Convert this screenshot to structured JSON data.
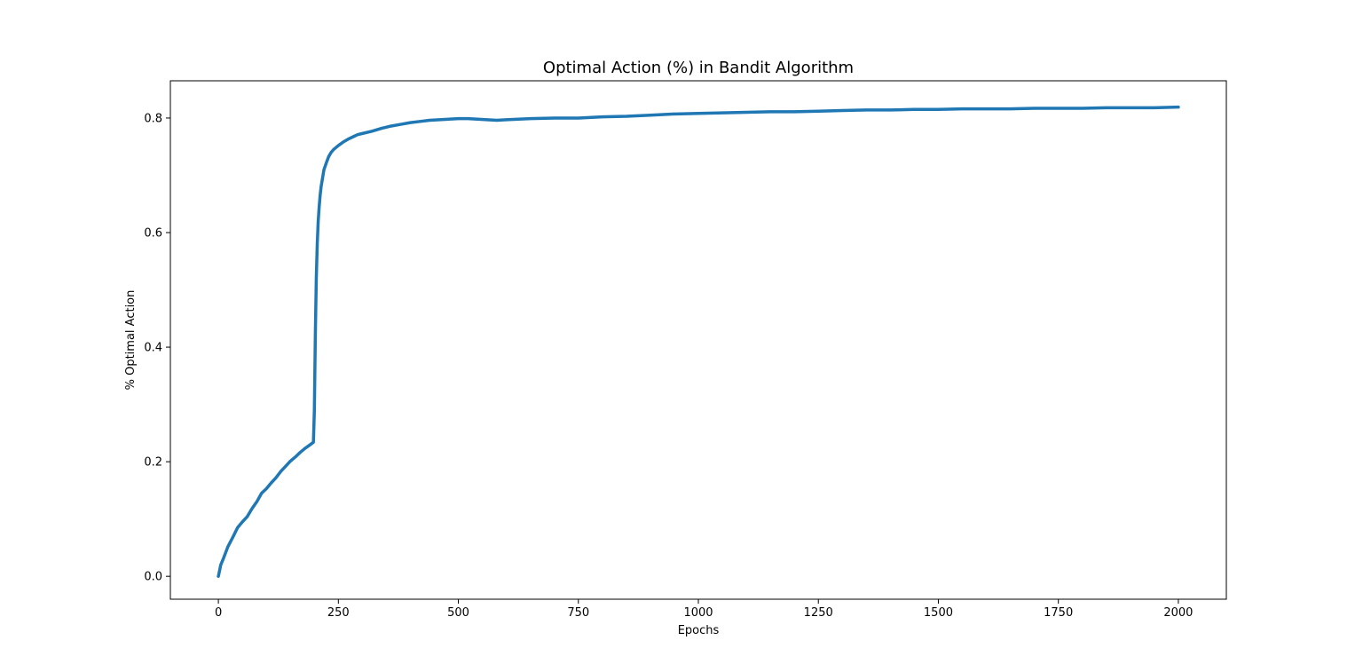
{
  "chart_data": {
    "type": "line",
    "title": "Optimal Action (%) in Bandit Algorithm",
    "xlabel": "Epochs",
    "ylabel": "% Optimal Action",
    "xlim": [
      -100,
      2100
    ],
    "ylim": [
      -0.04,
      0.865
    ],
    "xticks": [
      0,
      250,
      500,
      750,
      1000,
      1250,
      1500,
      1750,
      2000
    ],
    "yticks": [
      0.0,
      0.2,
      0.4,
      0.6,
      0.8
    ],
    "xtick_labels": [
      "0",
      "250",
      "500",
      "750",
      "1000",
      "1250",
      "1500",
      "1750",
      "2000"
    ],
    "ytick_labels": [
      "0.0",
      "0.2",
      "0.4",
      "0.6",
      "0.8"
    ],
    "grid": false,
    "color": "#1f77b4",
    "series": [
      {
        "x": [
          0,
          5,
          10,
          20,
          30,
          40,
          50,
          60,
          70,
          80,
          90,
          100,
          110,
          120,
          130,
          140,
          150,
          160,
          170,
          180,
          190,
          198,
          200,
          202,
          204,
          206,
          208,
          210,
          212,
          214,
          216,
          218,
          220,
          225,
          230,
          235,
          240,
          250,
          260,
          270,
          280,
          290,
          300,
          320,
          340,
          360,
          380,
          400,
          420,
          440,
          460,
          480,
          500,
          520,
          540,
          560,
          580,
          600,
          650,
          700,
          750,
          800,
          850,
          900,
          950,
          1000,
          1050,
          1100,
          1150,
          1200,
          1250,
          1300,
          1350,
          1400,
          1450,
          1500,
          1550,
          1600,
          1650,
          1700,
          1750,
          1800,
          1850,
          1900,
          1950,
          2000
        ],
        "y": [
          0.0,
          0.02,
          0.03,
          0.052,
          0.068,
          0.085,
          0.095,
          0.104,
          0.118,
          0.13,
          0.145,
          0.153,
          0.163,
          0.172,
          0.183,
          0.192,
          0.201,
          0.208,
          0.216,
          0.223,
          0.229,
          0.234,
          0.29,
          0.42,
          0.52,
          0.58,
          0.62,
          0.645,
          0.665,
          0.68,
          0.69,
          0.7,
          0.71,
          0.722,
          0.733,
          0.74,
          0.745,
          0.752,
          0.758,
          0.763,
          0.767,
          0.771,
          0.773,
          0.777,
          0.782,
          0.786,
          0.789,
          0.792,
          0.794,
          0.796,
          0.797,
          0.798,
          0.799,
          0.799,
          0.798,
          0.797,
          0.796,
          0.797,
          0.799,
          0.8,
          0.8,
          0.802,
          0.803,
          0.805,
          0.807,
          0.808,
          0.809,
          0.81,
          0.811,
          0.811,
          0.812,
          0.813,
          0.814,
          0.814,
          0.815,
          0.815,
          0.816,
          0.816,
          0.816,
          0.817,
          0.817,
          0.817,
          0.818,
          0.818,
          0.818,
          0.819
        ]
      }
    ]
  }
}
